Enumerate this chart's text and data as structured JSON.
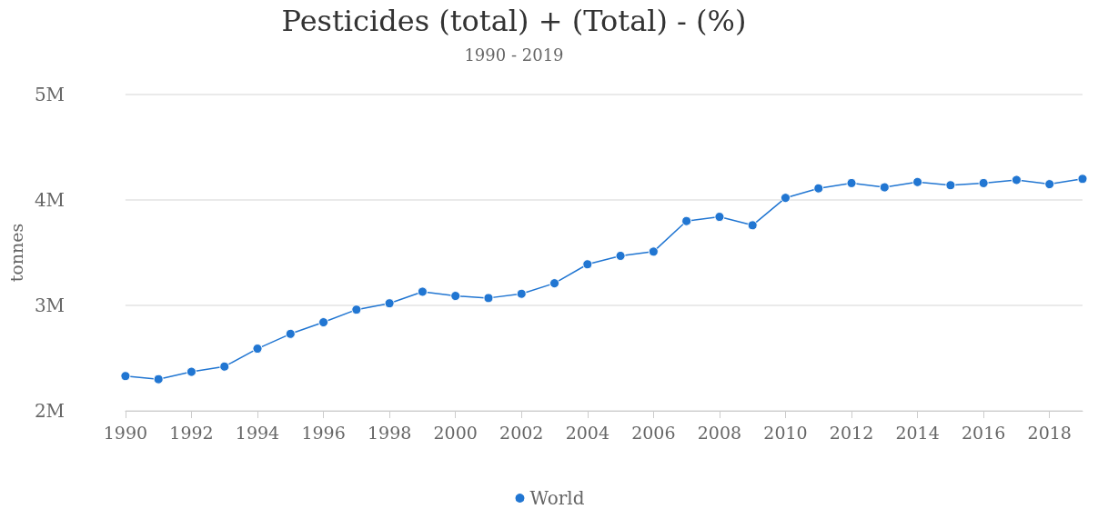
{
  "chart_data": {
    "type": "line",
    "title": "Pesticides (total) + (Total) - (%)",
    "subtitle": "1990 - 2019",
    "ylabel": "tonnes",
    "x": [
      1990,
      1991,
      1992,
      1993,
      1994,
      1995,
      1996,
      1997,
      1998,
      1999,
      2000,
      2001,
      2002,
      2003,
      2004,
      2005,
      2006,
      2007,
      2008,
      2009,
      2010,
      2011,
      2012,
      2013,
      2014,
      2015,
      2016,
      2017,
      2018,
      2019
    ],
    "series": [
      {
        "name": "World",
        "color": "#2176d2",
        "values": [
          2330000,
          2300000,
          2370000,
          2420000,
          2590000,
          2730000,
          2840000,
          2960000,
          3020000,
          3130000,
          3090000,
          3070000,
          3110000,
          3210000,
          3390000,
          3470000,
          3510000,
          3800000,
          3840000,
          3760000,
          4020000,
          4110000,
          4160000,
          4120000,
          4170000,
          4140000,
          4160000,
          4190000,
          4150000,
          4200000
        ]
      }
    ],
    "xlim": [
      1990,
      2019
    ],
    "xticks": [
      1990,
      1992,
      1994,
      1996,
      1998,
      2000,
      2002,
      2004,
      2006,
      2008,
      2010,
      2012,
      2014,
      2016,
      2018
    ],
    "ylim": [
      2000000,
      5000000
    ],
    "yticks": [
      {
        "value": 2000000,
        "label": "2M"
      },
      {
        "value": 3000000,
        "label": "3M"
      },
      {
        "value": 4000000,
        "label": "4M"
      },
      {
        "value": 5000000,
        "label": "5M"
      }
    ],
    "grid": "y",
    "legend": "bottom",
    "marker": "circle",
    "line_style": "solid"
  }
}
